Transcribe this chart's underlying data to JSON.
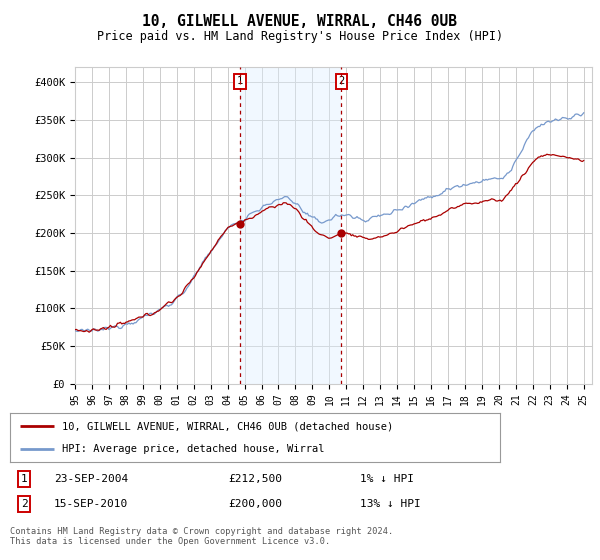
{
  "title": "10, GILWELL AVENUE, WIRRAL, CH46 0UB",
  "subtitle": "Price paid vs. HM Land Registry's House Price Index (HPI)",
  "legend_label_red": "10, GILWELL AVENUE, WIRRAL, CH46 0UB (detached house)",
  "legend_label_blue": "HPI: Average price, detached house, Wirral",
  "annotation1_date": "23-SEP-2004",
  "annotation1_price": "£212,500",
  "annotation1_hpi": "1% ↓ HPI",
  "annotation2_date": "15-SEP-2010",
  "annotation2_price": "£200,000",
  "annotation2_hpi": "13% ↓ HPI",
  "footer": "Contains HM Land Registry data © Crown copyright and database right 2024.\nThis data is licensed under the Open Government Licence v3.0.",
  "xlim_start": 1995.0,
  "xlim_end": 2025.5,
  "ylim_min": 0,
  "ylim_max": 420000,
  "yticks": [
    0,
    50000,
    100000,
    150000,
    200000,
    250000,
    300000,
    350000,
    400000
  ],
  "ytick_labels": [
    "£0",
    "£50K",
    "£100K",
    "£150K",
    "£200K",
    "£250K",
    "£300K",
    "£350K",
    "£400K"
  ],
  "marker1_x": 2004.73,
  "marker1_y": 212500,
  "marker2_x": 2010.71,
  "marker2_y": 200000,
  "vline1_x": 2004.73,
  "vline2_x": 2010.71,
  "red_color": "#aa0000",
  "blue_color": "#7799cc",
  "shade_color": "#ddeeff",
  "grid_color": "#cccccc",
  "background_color": "#ffffff"
}
